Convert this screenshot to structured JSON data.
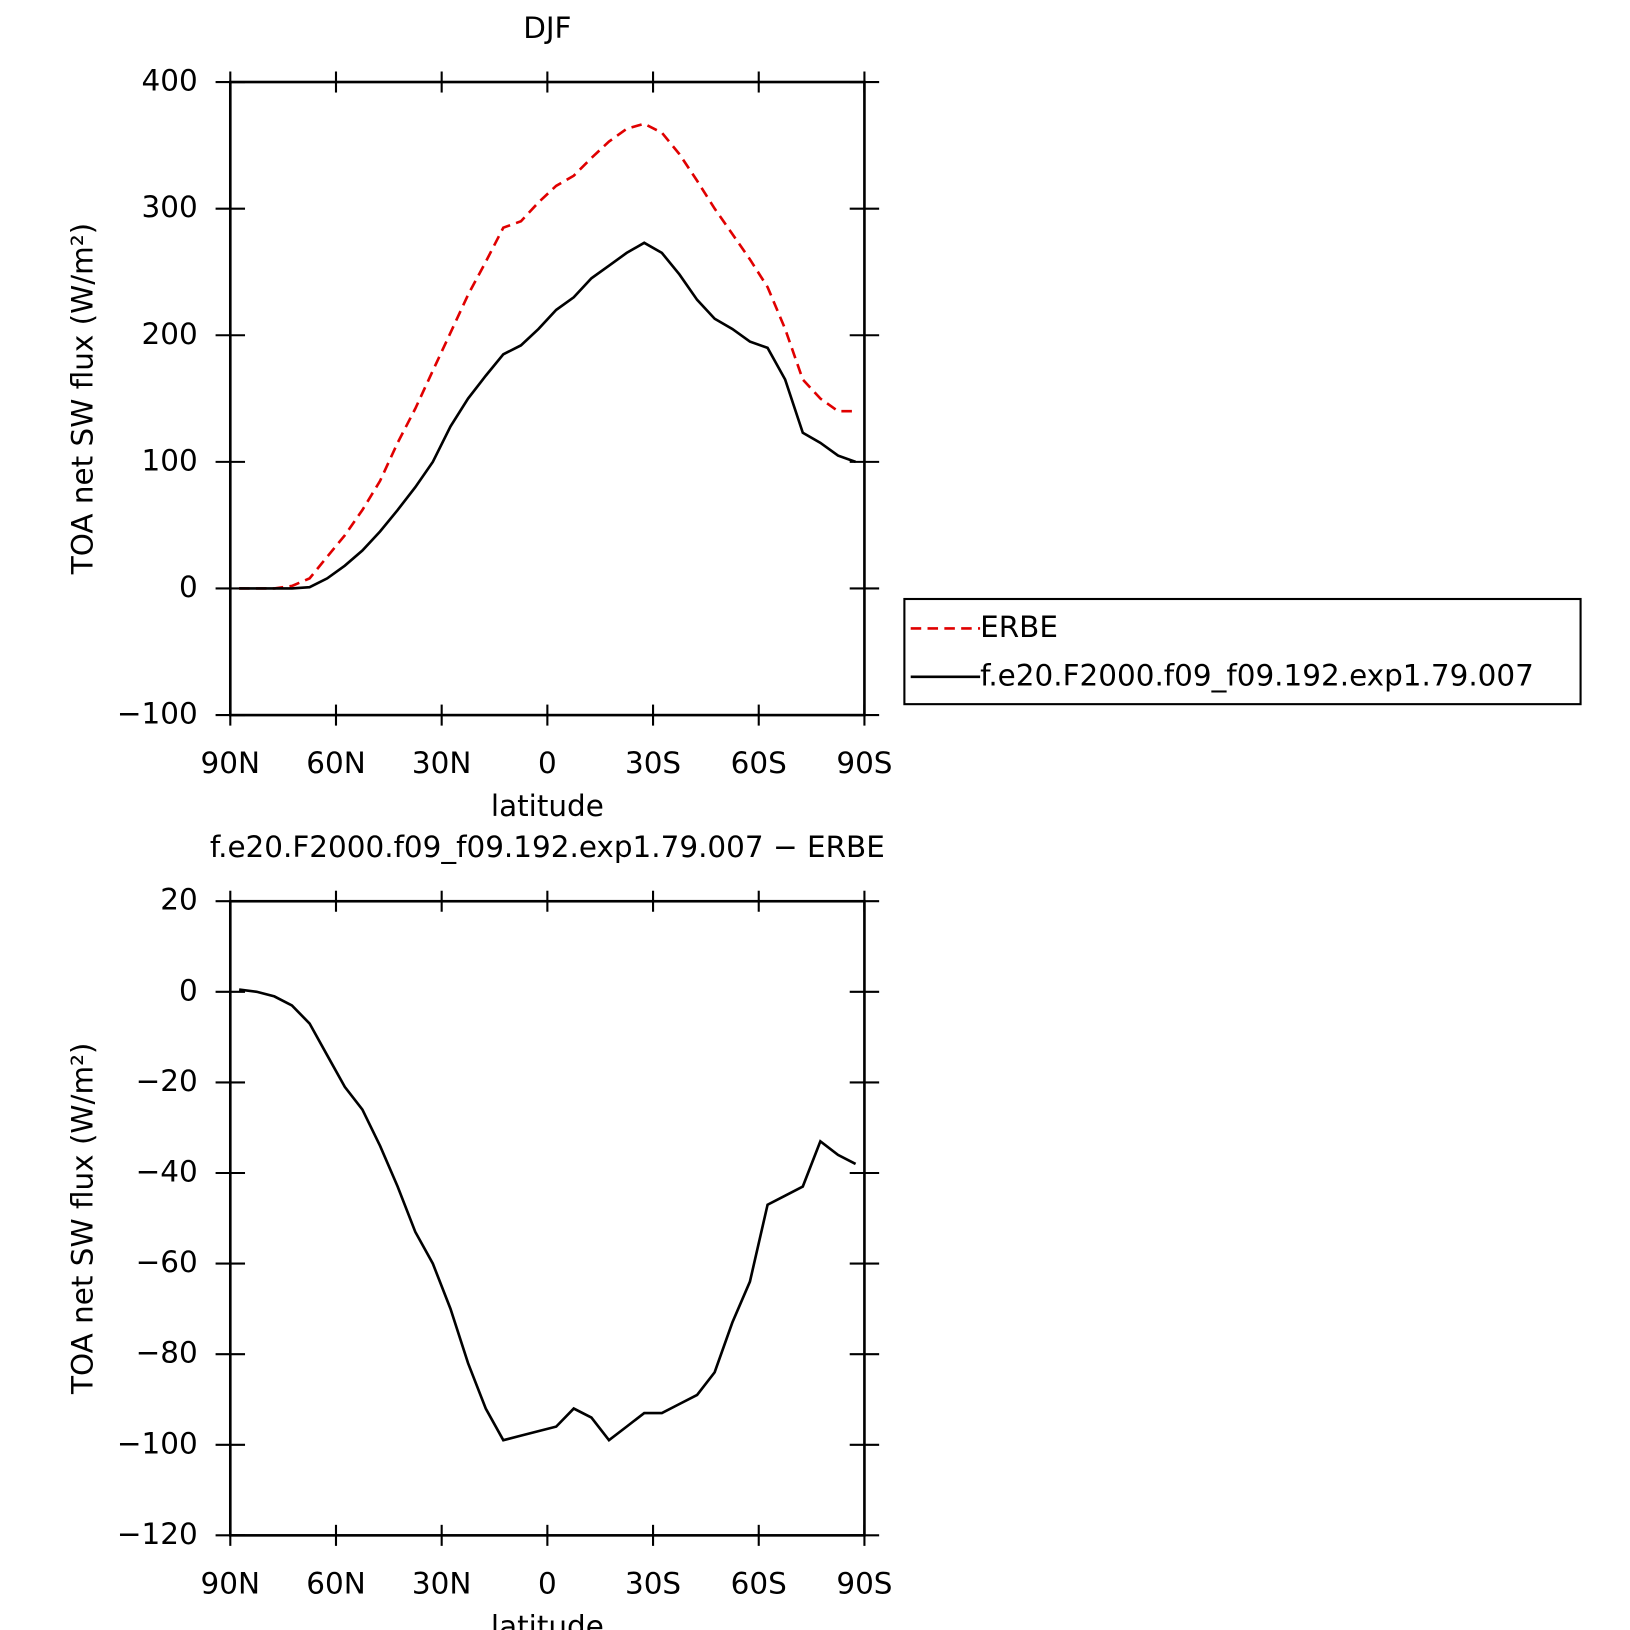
{
  "chart_data": [
    {
      "type": "line",
      "title": "DJF",
      "xlabel": "latitude",
      "ylabel": "TOA net SW flux (W/m²)",
      "x": [
        87.5,
        82.5,
        77.5,
        72.5,
        67.5,
        62.5,
        57.5,
        52.5,
        47.5,
        42.5,
        37.5,
        32.5,
        27.5,
        22.5,
        17.5,
        12.5,
        7.5,
        2.5,
        -2.5,
        -7.5,
        -12.5,
        -17.5,
        -22.5,
        -27.5,
        -32.5,
        -37.5,
        -42.5,
        -47.5,
        -52.5,
        -57.5,
        -62.5,
        -67.5,
        -72.5,
        -77.5,
        -82.5,
        -87.5
      ],
      "series": [
        {
          "name": "ERBE",
          "color": "#e00000",
          "linestyle": "dashed",
          "values": [
            0,
            0,
            0,
            2,
            8,
            25,
            42,
            62,
            85,
            115,
            142,
            172,
            202,
            232,
            258,
            285,
            290,
            305,
            318,
            326,
            340,
            353,
            363,
            367,
            360,
            343,
            322,
            300,
            280,
            260,
            238,
            205,
            165,
            150,
            140,
            140
          ]
        },
        {
          "name": "f.e20.F2000.f09_f09.192.exp1.79.007",
          "color": "#000000",
          "linestyle": "solid",
          "values": [
            0,
            0,
            0,
            0,
            1,
            8,
            18,
            30,
            45,
            62,
            80,
            100,
            128,
            150,
            168,
            185,
            192,
            205,
            220,
            230,
            245,
            255,
            265,
            273,
            265,
            248,
            228,
            213,
            205,
            195,
            190,
            165,
            123,
            115,
            105,
            100
          ]
        }
      ],
      "xlim": [
        90,
        -90
      ],
      "xticks": [
        {
          "value": 90,
          "label": "90N"
        },
        {
          "value": 60,
          "label": "60N"
        },
        {
          "value": 30,
          "label": "30N"
        },
        0,
        {
          "value": -30,
          "label": "30S"
        },
        {
          "value": -60,
          "label": "60S"
        },
        {
          "value": -90,
          "label": "90S"
        }
      ],
      "ylim": [
        -100,
        400
      ],
      "yticks": [
        {
          "value": -100,
          "label": "−100"
        },
        0,
        100,
        200,
        300,
        400
      ],
      "legend": "right"
    },
    {
      "type": "line",
      "title": "f.e20.F2000.f09_f09.192.exp1.79.007 − ERBE",
      "xlabel": "latitude",
      "ylabel": "TOA net SW flux (W/m²)",
      "x": [
        87.5,
        82.5,
        77.5,
        72.5,
        67.5,
        62.5,
        57.5,
        52.5,
        47.5,
        42.5,
        37.5,
        32.5,
        27.5,
        22.5,
        17.5,
        12.5,
        7.5,
        2.5,
        -2.5,
        -7.5,
        -12.5,
        -17.5,
        -22.5,
        -27.5,
        -32.5,
        -37.5,
        -42.5,
        -47.5,
        -52.5,
        -57.5,
        -62.5,
        -67.5,
        -72.5,
        -77.5,
        -82.5,
        -87.5
      ],
      "series": [
        {
          "color": "#000000",
          "linestyle": "solid",
          "values": [
            0.5,
            0,
            -1,
            -3,
            -7,
            -14,
            -21,
            -26,
            -34,
            -43,
            -53,
            -60,
            -70,
            -82,
            -92,
            -99,
            -98,
            -97,
            -96,
            -92,
            -94,
            -99,
            -96,
            -93,
            -93,
            -91,
            -89,
            -84,
            -73,
            -64,
            -47,
            -45,
            -43,
            -33,
            -36,
            -38
          ]
        }
      ],
      "xlim": [
        90,
        -90
      ],
      "xticks": [
        {
          "value": 90,
          "label": "90N"
        },
        {
          "value": 60,
          "label": "60N"
        },
        {
          "value": 30,
          "label": "30N"
        },
        0,
        {
          "value": -30,
          "label": "30S"
        },
        {
          "value": -60,
          "label": "60S"
        },
        {
          "value": -90,
          "label": "90S"
        }
      ],
      "ylim": [
        -120,
        20
      ],
      "yticks": [
        {
          "value": -120,
          "label": "−120"
        },
        {
          "value": -100,
          "label": "−100"
        },
        {
          "value": -80,
          "label": "−80"
        },
        {
          "value": -60,
          "label": "−60"
        },
        {
          "value": -40,
          "label": "−40"
        },
        {
          "value": -20,
          "label": "−20"
        },
        0,
        20
      ]
    }
  ]
}
